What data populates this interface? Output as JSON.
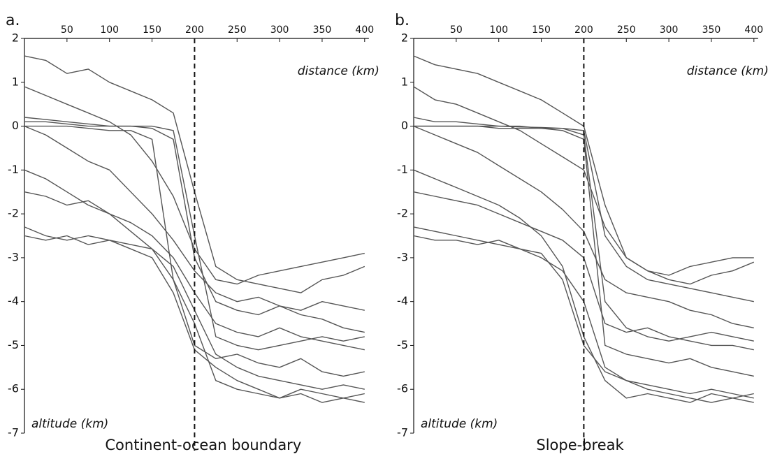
{
  "chart_data": [
    {
      "type": "line",
      "title": "a.",
      "x_label": "distance (km)",
      "y_label": "altitude (km)",
      "caption": "Continent-ocean boundary",
      "reference_x": 200,
      "xlim": [
        0,
        405
      ],
      "ylim": [
        -7,
        2
      ],
      "xticks": [
        50,
        100,
        150,
        200,
        250,
        300,
        350,
        400
      ],
      "yticks": [
        2,
        1,
        0,
        -1,
        -2,
        -3,
        -4,
        -5,
        -6,
        -7
      ],
      "x": [
        0,
        25,
        50,
        75,
        100,
        125,
        150,
        175,
        200,
        225,
        250,
        275,
        300,
        325,
        350,
        375,
        400
      ],
      "series": [
        {
          "color": "#555555",
          "values": [
            0.1,
            0.1,
            0.05,
            0,
            0,
            0,
            0,
            -0.1,
            -2.5,
            -4.8,
            -5.0,
            -5.1,
            -5.0,
            -4.9,
            -4.8,
            -4.9,
            -4.8
          ]
        },
        {
          "color": "#555555",
          "values": [
            0.2,
            0.15,
            0.1,
            0.05,
            0,
            0,
            -0.05,
            -0.3,
            -3.0,
            -4.0,
            -4.2,
            -4.3,
            -4.1,
            -4.2,
            -4.0,
            -4.1,
            -4.2
          ]
        },
        {
          "color": "#555555",
          "values": [
            1.6,
            1.5,
            1.2,
            1.3,
            1.0,
            0.8,
            0.6,
            0.3,
            -1.5,
            -3.2,
            -3.5,
            -3.6,
            -3.7,
            -3.8,
            -3.5,
            -3.4,
            -3.2
          ]
        },
        {
          "color": "#555555",
          "values": [
            -2.5,
            -2.6,
            -2.5,
            -2.7,
            -2.6,
            -2.7,
            -2.8,
            -3.2,
            -4.2,
            -5.2,
            -5.5,
            -5.7,
            -5.8,
            -5.9,
            -6.0,
            -5.9,
            -6.0
          ]
        },
        {
          "color": "#555555",
          "values": [
            -1.0,
            -1.2,
            -1.5,
            -1.8,
            -2.0,
            -2.4,
            -2.8,
            -3.5,
            -4.5,
            -5.8,
            -6.0,
            -6.1,
            -6.2,
            -6.0,
            -6.1,
            -6.2,
            -6.1
          ]
        },
        {
          "color": "#555555",
          "values": [
            0.0,
            -0.2,
            -0.5,
            -0.8,
            -1.0,
            -1.5,
            -2.0,
            -2.6,
            -3.3,
            -3.8,
            -4.0,
            -3.9,
            -4.1,
            -4.3,
            -4.4,
            -4.6,
            -4.7
          ]
        },
        {
          "color": "#555555",
          "values": [
            0.0,
            0.0,
            0.0,
            -0.05,
            -0.1,
            -0.1,
            -0.3,
            -3.5,
            -5.0,
            -5.3,
            -5.2,
            -5.4,
            -5.5,
            -5.3,
            -5.6,
            -5.7,
            -5.6
          ]
        },
        {
          "color": "#555555",
          "values": [
            -1.5,
            -1.6,
            -1.8,
            -1.7,
            -2.0,
            -2.2,
            -2.5,
            -3.0,
            -3.8,
            -4.5,
            -4.7,
            -4.8,
            -4.6,
            -4.8,
            -4.9,
            -5.0,
            -5.1
          ]
        },
        {
          "color": "#555555",
          "values": [
            0.9,
            0.7,
            0.5,
            0.3,
            0.1,
            -0.2,
            -0.8,
            -1.6,
            -2.8,
            -3.5,
            -3.6,
            -3.4,
            -3.3,
            -3.2,
            -3.1,
            -3.0,
            -2.9
          ]
        },
        {
          "color": "#555555",
          "values": [
            -2.3,
            -2.5,
            -2.6,
            -2.5,
            -2.6,
            -2.8,
            -3.0,
            -3.8,
            -5.1,
            -5.5,
            -5.8,
            -6.0,
            -6.2,
            -6.1,
            -6.3,
            -6.2,
            -6.3
          ]
        }
      ]
    },
    {
      "type": "line",
      "title": "b.",
      "x_label": "distance (km)",
      "y_label": "altitude (km)",
      "caption": "Slope-break",
      "reference_x": 200,
      "xlim": [
        0,
        405
      ],
      "ylim": [
        -7,
        2
      ],
      "xticks": [
        50,
        100,
        150,
        200,
        250,
        300,
        350,
        400
      ],
      "yticks": [
        2,
        1,
        0,
        -1,
        -2,
        -3,
        -4,
        -5,
        -6,
        -7
      ],
      "x": [
        0,
        25,
        50,
        75,
        100,
        125,
        150,
        175,
        200,
        225,
        250,
        275,
        300,
        325,
        350,
        375,
        400
      ],
      "series": [
        {
          "color": "#555555",
          "values": [
            0.0,
            0.0,
            0.0,
            0,
            0,
            -0.02,
            -0.03,
            -0.05,
            -0.1,
            -2.5,
            -3.2,
            -3.5,
            -3.6,
            -3.7,
            -3.8,
            -3.9,
            -4.0
          ]
        },
        {
          "color": "#555555",
          "values": [
            0.2,
            0.1,
            0.1,
            0.05,
            0,
            0,
            -0.05,
            -0.05,
            -0.2,
            -4.0,
            -4.6,
            -4.8,
            -4.9,
            -4.8,
            -4.7,
            -4.8,
            -4.9
          ]
        },
        {
          "color": "#555555",
          "values": [
            1.6,
            1.4,
            1.3,
            1.2,
            1.0,
            0.8,
            0.6,
            0.3,
            0,
            -1.8,
            -3.0,
            -3.3,
            -3.5,
            -3.6,
            -3.4,
            -3.3,
            -3.1
          ]
        },
        {
          "color": "#555555",
          "values": [
            -2.5,
            -2.6,
            -2.6,
            -2.7,
            -2.6,
            -2.8,
            -2.9,
            -3.5,
            -5.0,
            -5.6,
            -5.8,
            -5.9,
            -6.0,
            -6.1,
            -6.0,
            -6.1,
            -6.2
          ]
        },
        {
          "color": "#555555",
          "values": [
            -1.0,
            -1.2,
            -1.4,
            -1.6,
            -1.8,
            -2.1,
            -2.5,
            -3.2,
            -4.8,
            -5.8,
            -6.2,
            -6.1,
            -6.2,
            -6.3,
            -6.1,
            -6.2,
            -6.1
          ]
        },
        {
          "color": "#555555",
          "values": [
            0.0,
            -0.2,
            -0.4,
            -0.6,
            -0.9,
            -1.2,
            -1.5,
            -1.9,
            -2.4,
            -3.5,
            -3.8,
            -3.9,
            -4.0,
            -4.2,
            -4.3,
            -4.5,
            -4.6
          ]
        },
        {
          "color": "#555555",
          "values": [
            0,
            0,
            0,
            0,
            -0.05,
            -0.05,
            -0.05,
            -0.1,
            -0.3,
            -5.0,
            -5.2,
            -5.3,
            -5.4,
            -5.3,
            -5.5,
            -5.6,
            -5.7
          ]
        },
        {
          "color": "#555555",
          "values": [
            -1.5,
            -1.6,
            -1.7,
            -1.8,
            -2.0,
            -2.2,
            -2.4,
            -2.6,
            -3.0,
            -4.5,
            -4.7,
            -4.6,
            -4.8,
            -4.9,
            -5.0,
            -5.0,
            -5.1
          ]
        },
        {
          "color": "#555555",
          "values": [
            0.9,
            0.6,
            0.5,
            0.3,
            0.1,
            -0.1,
            -0.4,
            -0.7,
            -1.0,
            -2.3,
            -3.0,
            -3.3,
            -3.4,
            -3.2,
            -3.1,
            -3.0,
            -3.0
          ]
        },
        {
          "color": "#555555",
          "values": [
            -2.3,
            -2.4,
            -2.5,
            -2.6,
            -2.7,
            -2.8,
            -3.0,
            -3.3,
            -4.0,
            -5.5,
            -5.8,
            -6.0,
            -6.1,
            -6.2,
            -6.3,
            -6.2,
            -6.3
          ]
        }
      ]
    }
  ]
}
